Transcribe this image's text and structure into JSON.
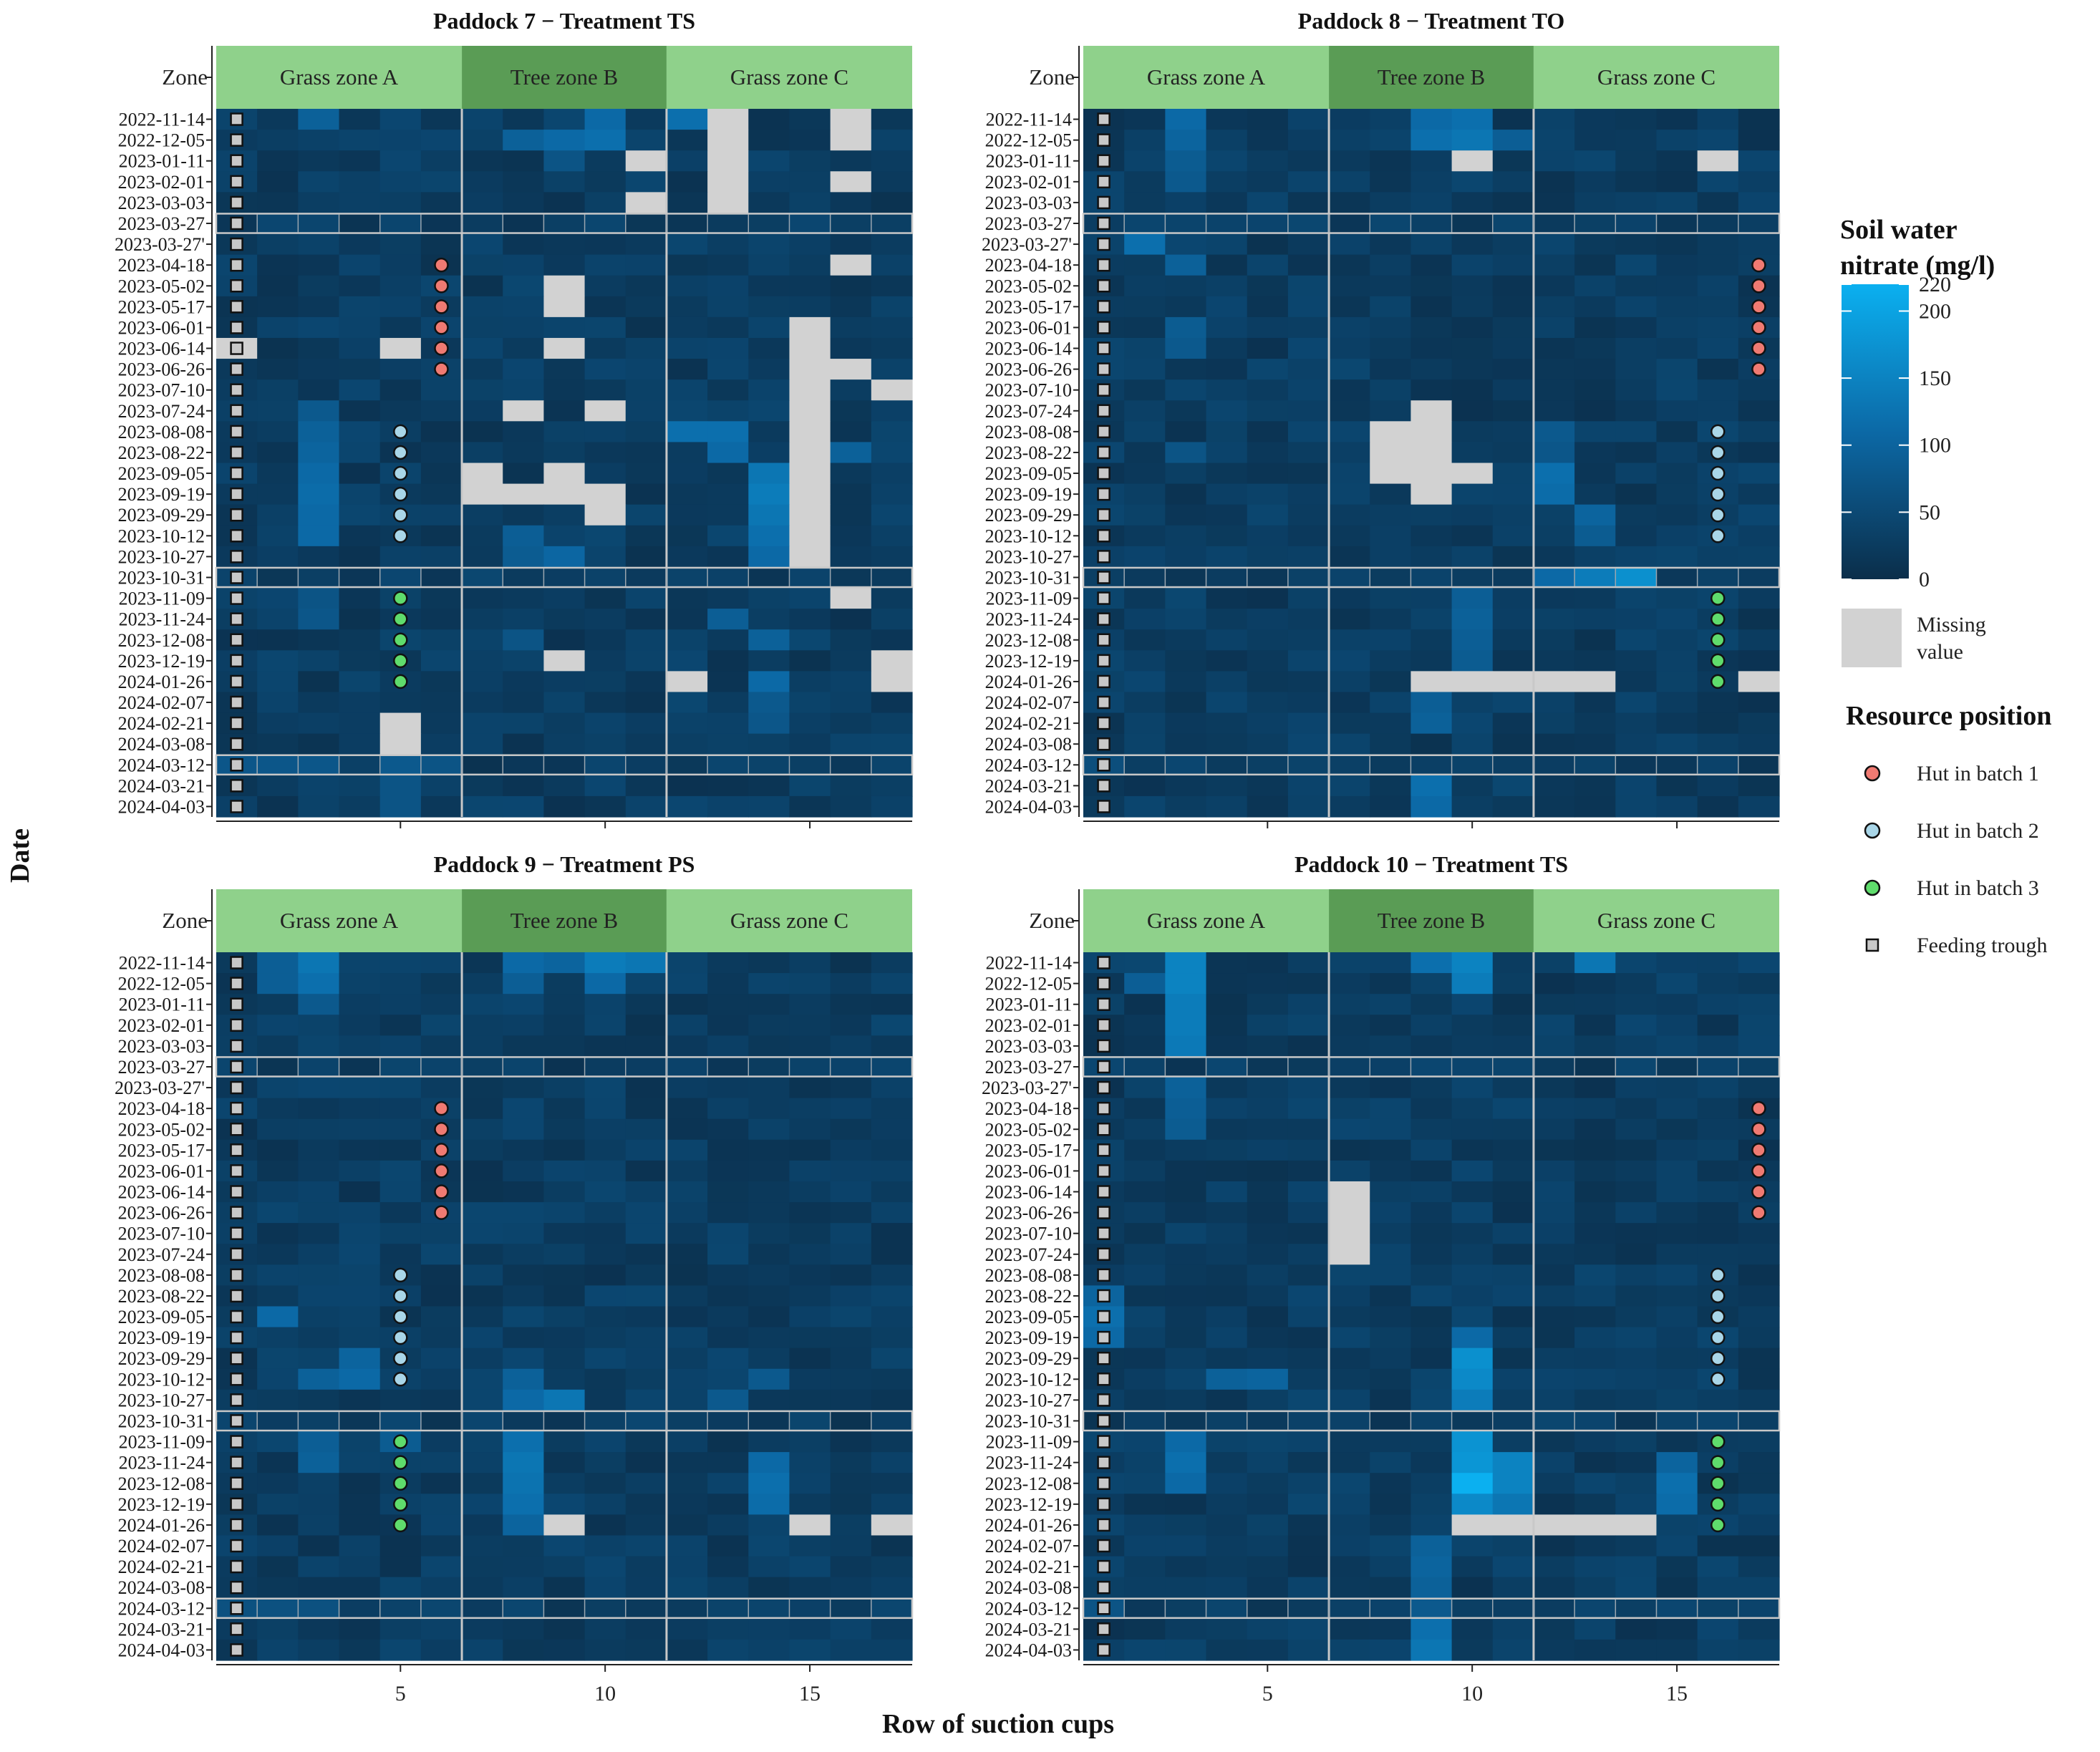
{
  "chart_data": {
    "type": "heatmap",
    "xlabel": "Row of suction cups",
    "ylabel": "Date",
    "zone_header": "Zone",
    "x_ticks": [
      5,
      10,
      15
    ],
    "x_range": [
      1,
      17
    ],
    "zones": [
      {
        "name": "Grass zone A",
        "from": 1,
        "to": 6,
        "color": "#8fd18b"
      },
      {
        "name": "Tree zone B",
        "from": 7,
        "to": 11,
        "color": "#5a9c55"
      },
      {
        "name": "Grass zone C",
        "from": 12,
        "to": 17,
        "color": "#8fd18b"
      }
    ],
    "dates": [
      "2022-11-14",
      "2022-12-05",
      "2023-01-11",
      "2023-02-01",
      "2023-03-03",
      "2023-03-27",
      "2023-03-27'",
      "2023-04-18",
      "2023-05-02",
      "2023-05-17",
      "2023-06-01",
      "2023-06-14",
      "2023-06-26",
      "2023-07-10",
      "2023-07-24",
      "2023-08-08",
      "2023-08-22",
      "2023-09-05",
      "2023-09-19",
      "2023-09-29",
      "2023-10-12",
      "2023-10-27",
      "2023-10-31",
      "2023-11-09",
      "2023-11-24",
      "2023-12-08",
      "2023-12-19",
      "2024-01-26",
      "2024-02-07",
      "2024-02-21",
      "2024-03-08",
      "2024-03-12",
      "2024-03-21",
      "2024-04-03"
    ],
    "separator_dates": [
      "2023-03-27",
      "2023-10-31",
      "2024-03-12"
    ],
    "color_scale": {
      "title_line1": "Soil water",
      "title_line2": "nitrate (mg/l)",
      "min": 0,
      "max": 220,
      "low_color": "#0b2e4a",
      "mid_color": "#0c69a6",
      "high_color": "#0bb0f0",
      "ticks": [
        0,
        50,
        100,
        150,
        200,
        220
      ],
      "missing_color": "#d2d2d2",
      "missing_label_line1": "Missing",
      "missing_label_line2": "value"
    },
    "resource_legend_title": "Resource position",
    "resources": [
      {
        "key": "hut1",
        "label": "Hut in batch 1",
        "color": "#f07a72",
        "shape": "circle"
      },
      {
        "key": "hut2",
        "label": "Hut in batch 2",
        "color": "#a9d6e8",
        "shape": "circle"
      },
      {
        "key": "hut3",
        "label": "Hut in batch 3",
        "color": "#5fdc6c",
        "shape": "circle"
      },
      {
        "key": "trough",
        "label": "Feeding trough",
        "color": "#c8c8c8",
        "shape": "square"
      }
    ],
    "panels": [
      {
        "title": "Paddock 7 − Treatment TS",
        "hut_rows": [
          6,
          5,
          5
        ],
        "missing": [
          [
            1,
            13
          ],
          [
            1,
            16
          ],
          [
            2,
            13
          ],
          [
            2,
            16
          ],
          [
            3,
            11
          ],
          [
            3,
            13
          ],
          [
            4,
            13
          ],
          [
            4,
            16
          ],
          [
            5,
            11
          ],
          [
            5,
            13
          ],
          [
            8,
            16
          ],
          [
            9,
            9
          ],
          [
            10,
            9
          ],
          [
            11,
            15
          ],
          [
            12,
            1
          ],
          [
            12,
            5
          ],
          [
            12,
            9
          ],
          [
            12,
            15
          ],
          [
            13,
            15
          ],
          [
            13,
            16
          ],
          [
            14,
            15
          ],
          [
            14,
            17
          ],
          [
            15,
            8
          ],
          [
            15,
            10
          ],
          [
            15,
            15
          ],
          [
            16,
            15
          ],
          [
            17,
            15
          ],
          [
            18,
            7
          ],
          [
            18,
            9
          ],
          [
            18,
            15
          ],
          [
            19,
            7
          ],
          [
            19,
            8
          ],
          [
            19,
            9
          ],
          [
            19,
            10
          ],
          [
            19,
            15
          ],
          [
            20,
            10
          ],
          [
            20,
            15
          ],
          [
            21,
            15
          ],
          [
            22,
            15
          ],
          [
            24,
            16
          ],
          [
            27,
            9
          ],
          [
            28,
            12
          ],
          [
            28,
            17
          ],
          [
            27,
            17
          ],
          [
            30,
            5
          ],
          [
            31,
            5
          ]
        ],
        "bright": [
          [
            1,
            3,
            95
          ],
          [
            1,
            10,
            110
          ],
          [
            2,
            9,
            110
          ],
          [
            2,
            10,
            120
          ],
          [
            1,
            12,
            120
          ],
          [
            2,
            8,
            95
          ],
          [
            3,
            9,
            70
          ],
          [
            15,
            3,
            80
          ],
          [
            16,
            3,
            95
          ],
          [
            17,
            3,
            100
          ],
          [
            18,
            3,
            110
          ],
          [
            19,
            3,
            115
          ],
          [
            20,
            3,
            110
          ],
          [
            21,
            3,
            110
          ],
          [
            16,
            12,
            120
          ],
          [
            16,
            13,
            120
          ],
          [
            17,
            13,
            110
          ],
          [
            18,
            14,
            130
          ],
          [
            19,
            14,
            140
          ],
          [
            20,
            14,
            130
          ],
          [
            21,
            14,
            120
          ],
          [
            22,
            14,
            110
          ],
          [
            17,
            16,
            95
          ],
          [
            21,
            8,
            90
          ],
          [
            22,
            8,
            85
          ],
          [
            22,
            9,
            105
          ],
          [
            25,
            13,
            90
          ],
          [
            26,
            14,
            95
          ],
          [
            28,
            14,
            110
          ],
          [
            29,
            14,
            80
          ],
          [
            30,
            14,
            75
          ],
          [
            24,
            3,
            70
          ],
          [
            25,
            3,
            75
          ],
          [
            26,
            8,
            70
          ],
          [
            32,
            1,
            75
          ],
          [
            32,
            2,
            75
          ],
          [
            32,
            3,
            75
          ],
          [
            32,
            5,
            80
          ],
          [
            32,
            6,
            70
          ],
          [
            33,
            5,
            70
          ],
          [
            34,
            5,
            70
          ]
        ]
      },
      {
        "title": "Paddock 8 − Treatment TO",
        "hut_rows": [
          17,
          16,
          16
        ],
        "missing": [
          [
            3,
            10
          ],
          [
            3,
            16
          ],
          [
            15,
            9
          ],
          [
            16,
            8
          ],
          [
            16,
            9
          ],
          [
            17,
            8
          ],
          [
            17,
            9
          ],
          [
            18,
            8
          ],
          [
            18,
            9
          ],
          [
            18,
            10
          ],
          [
            19,
            9
          ],
          [
            28,
            9
          ],
          [
            28,
            10
          ],
          [
            28,
            11
          ],
          [
            28,
            12
          ],
          [
            28,
            13
          ],
          [
            28,
            17
          ]
        ],
        "bright": [
          [
            1,
            3,
            110
          ],
          [
            1,
            9,
            110
          ],
          [
            1,
            10,
            120
          ],
          [
            2,
            3,
            100
          ],
          [
            2,
            9,
            120
          ],
          [
            2,
            10,
            130
          ],
          [
            2,
            11,
            90
          ],
          [
            3,
            3,
            85
          ],
          [
            4,
            3,
            80
          ],
          [
            7,
            2,
            120
          ],
          [
            8,
            3,
            95
          ],
          [
            11,
            3,
            85
          ],
          [
            12,
            3,
            80
          ],
          [
            16,
            12,
            80
          ],
          [
            17,
            12,
            75
          ],
          [
            18,
            12,
            120
          ],
          [
            19,
            12,
            115
          ],
          [
            20,
            13,
            100
          ],
          [
            21,
            13,
            85
          ],
          [
            23,
            13,
            140
          ],
          [
            23,
            14,
            170
          ],
          [
            23,
            12,
            110
          ],
          [
            24,
            10,
            90
          ],
          [
            25,
            10,
            95
          ],
          [
            26,
            10,
            90
          ],
          [
            27,
            10,
            85
          ],
          [
            29,
            9,
            90
          ],
          [
            30,
            9,
            95
          ],
          [
            32,
            1,
            60
          ],
          [
            33,
            9,
            120
          ],
          [
            34,
            9,
            110
          ],
          [
            17,
            3,
            70
          ]
        ]
      },
      {
        "title": "Paddock 9 − Treatment PS",
        "hut_rows": [
          6,
          5,
          5
        ],
        "missing": [
          [
            28,
            9
          ],
          [
            28,
            15
          ],
          [
            28,
            17
          ]
        ],
        "bright": [
          [
            1,
            2,
            90
          ],
          [
            1,
            3,
            130
          ],
          [
            1,
            8,
            110
          ],
          [
            1,
            10,
            140
          ],
          [
            1,
            11,
            130
          ],
          [
            1,
            9,
            100
          ],
          [
            2,
            3,
            120
          ],
          [
            2,
            2,
            90
          ],
          [
            2,
            10,
            110
          ],
          [
            2,
            8,
            90
          ],
          [
            3,
            3,
            80
          ],
          [
            18,
            2,
            110
          ],
          [
            20,
            4,
            100
          ],
          [
            21,
            4,
            110
          ],
          [
            21,
            3,
            95
          ],
          [
            22,
            9,
            130
          ],
          [
            22,
            8,
            110
          ],
          [
            21,
            8,
            95
          ],
          [
            24,
            8,
            120
          ],
          [
            25,
            8,
            130
          ],
          [
            26,
            8,
            125
          ],
          [
            27,
            8,
            120
          ],
          [
            28,
            8,
            100
          ],
          [
            24,
            3,
            90
          ],
          [
            25,
            3,
            95
          ],
          [
            25,
            14,
            110
          ],
          [
            26,
            14,
            120
          ],
          [
            27,
            14,
            115
          ],
          [
            24,
            5,
            85
          ],
          [
            21,
            14,
            80
          ],
          [
            22,
            13,
            80
          ],
          [
            32,
            1,
            65
          ],
          [
            32,
            2,
            65
          ],
          [
            32,
            3,
            65
          ]
        ]
      },
      {
        "title": "Paddock 10 − Treatment TS",
        "hut_rows": [
          17,
          16,
          16
        ],
        "missing": [
          [
            12,
            7
          ],
          [
            13,
            7
          ],
          [
            14,
            7
          ],
          [
            15,
            7
          ],
          [
            28,
            10
          ],
          [
            28,
            11
          ],
          [
            28,
            12
          ],
          [
            28,
            13
          ],
          [
            28,
            14
          ]
        ],
        "bright": [
          [
            1,
            3,
            150
          ],
          [
            1,
            10,
            150
          ],
          [
            1,
            9,
            120
          ],
          [
            2,
            3,
            150
          ],
          [
            2,
            10,
            140
          ],
          [
            2,
            2,
            90
          ],
          [
            3,
            3,
            140
          ],
          [
            4,
            3,
            140
          ],
          [
            5,
            3,
            135
          ],
          [
            1,
            13,
            130
          ],
          [
            7,
            3,
            95
          ],
          [
            8,
            3,
            90
          ],
          [
            9,
            3,
            85
          ],
          [
            18,
            1,
            120
          ],
          [
            19,
            1,
            110
          ],
          [
            17,
            1,
            100
          ],
          [
            20,
            10,
            170
          ],
          [
            21,
            10,
            160
          ],
          [
            22,
            10,
            140
          ],
          [
            19,
            10,
            110
          ],
          [
            24,
            10,
            175
          ],
          [
            25,
            10,
            180
          ],
          [
            26,
            10,
            220
          ],
          [
            27,
            10,
            160
          ],
          [
            25,
            11,
            150
          ],
          [
            26,
            11,
            150
          ],
          [
            27,
            11,
            130
          ],
          [
            24,
            3,
            110
          ],
          [
            25,
            3,
            120
          ],
          [
            26,
            3,
            110
          ],
          [
            26,
            15,
            120
          ],
          [
            27,
            15,
            115
          ],
          [
            25,
            15,
            100
          ],
          [
            21,
            4,
            95
          ],
          [
            21,
            5,
            100
          ],
          [
            29,
            9,
            95
          ],
          [
            30,
            9,
            100
          ],
          [
            31,
            9,
            95
          ],
          [
            33,
            9,
            120
          ],
          [
            34,
            9,
            130
          ],
          [
            32,
            1,
            70
          ],
          [
            32,
            9,
            80
          ]
        ]
      }
    ]
  }
}
